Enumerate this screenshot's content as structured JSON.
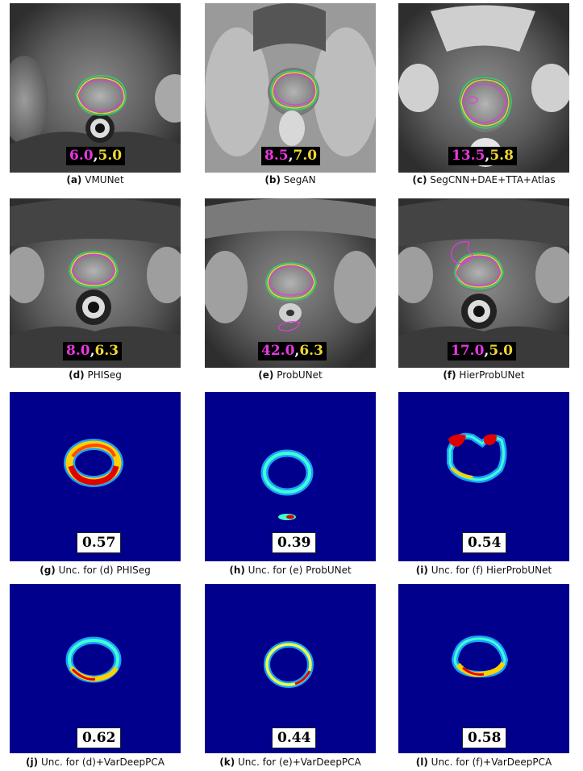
{
  "colors": {
    "pred_a": "#e838e0",
    "pred_b": "#f0d832",
    "ground_truth": "#2fd36a",
    "heatmap_bg": "#00008c"
  },
  "row1": [
    {
      "tag": "(a)",
      "caption": "VMUNet",
      "v1": "6.0",
      "v2": "5.0"
    },
    {
      "tag": "(b)",
      "caption": "SegAN",
      "v1": "8.5",
      "v2": "7.0"
    },
    {
      "tag": "(c)",
      "caption": "SegCNN+DAE+TTA+Atlas",
      "v1": "13.5",
      "v2": "5.8"
    }
  ],
  "row2": [
    {
      "tag": "(d)",
      "caption": "PHISeg",
      "v1": "8.0",
      "v2": "6.3"
    },
    {
      "tag": "(e)",
      "caption": "ProbUNet",
      "v1": "42.0",
      "v2": "6.3"
    },
    {
      "tag": "(f)",
      "caption": "HierProbUNet",
      "v1": "17.0",
      "v2": "5.0"
    }
  ],
  "row3": [
    {
      "tag": "(g)",
      "caption": "Unc. for (d) PHISeg",
      "score": "0.57"
    },
    {
      "tag": "(h)",
      "caption": "Unc. for (e) ProbUNet",
      "score": "0.39"
    },
    {
      "tag": "(i)",
      "caption": "Unc. for (f) HierProbUNet",
      "score": "0.54"
    }
  ],
  "row4": [
    {
      "tag": "(j)",
      "caption": "Unc. for (d)+VarDeepPCA",
      "score": "0.62"
    },
    {
      "tag": "(k)",
      "caption": "Unc. for (e)+VarDeepPCA",
      "score": "0.44"
    },
    {
      "tag": "(l)",
      "caption": "Unc. for (f)+VarDeepPCA",
      "score": "0.58"
    }
  ],
  "separator": ","
}
